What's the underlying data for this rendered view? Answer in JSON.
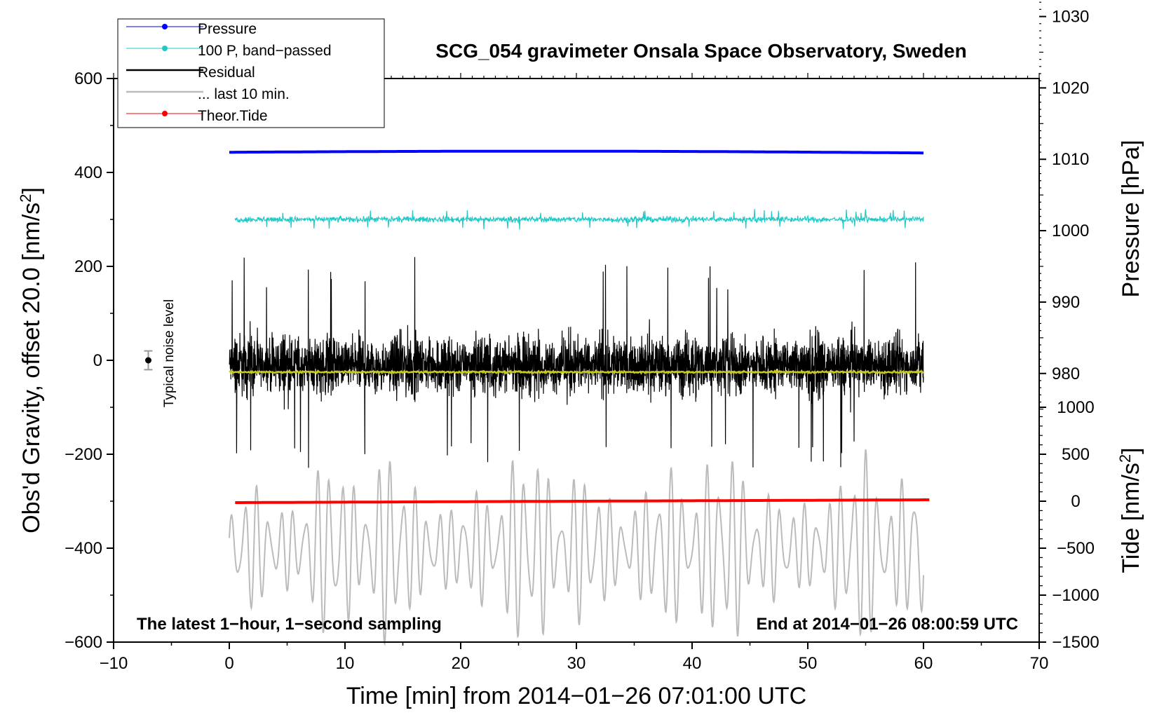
{
  "chart_data": {
    "type": "line",
    "title": "SCG_054 gravimeter Onsala Space Observatory, Sweden",
    "xlabel": "Time [min] from 2014−01−26 07:01:00 UTC",
    "ylabel_left": "Obs'd Gravity, offset 20.0 [nm/s",
    "ylabel_left_sup": "2",
    "ylabel_left_close": "]",
    "ylabel_right_pressure": "Pressure [hPa]",
    "ylabel_right_tide": "Tide [nm/s",
    "ylabel_right_tide_sup": "2",
    "ylabel_right_tide_close": "]",
    "xlim": [
      -10,
      70
    ],
    "ylim": [
      -600,
      600
    ],
    "x_ticks": [
      -10,
      0,
      10,
      20,
      30,
      40,
      50,
      60,
      70
    ],
    "x_tick_labels": [
      "−10",
      "0",
      "10",
      "20",
      "30",
      "40",
      "50",
      "60",
      "70"
    ],
    "y_ticks": [
      600,
      400,
      200,
      0,
      -200,
      -400,
      -600
    ],
    "y_tick_labels": [
      "600",
      "400",
      "200",
      "0",
      "−200",
      "−400",
      "−600"
    ],
    "pressure_axis": {
      "ticks": [
        1030,
        1020,
        1010,
        1000,
        990,
        980
      ],
      "tick_labels": [
        "1030",
        "1020",
        "1010",
        "1000",
        "990",
        "980"
      ],
      "gravity_equiv_of_1000hPa": 276,
      "gravity_per_hPa": 15.2
    },
    "tide_axis": {
      "ticks": [
        1000,
        500,
        0,
        -500,
        -1000,
        -1500
      ],
      "tick_labels": [
        "1000",
        "500",
        "0",
        "−500",
        "−1000",
        "−1500"
      ],
      "gravity_equiv_of_zero": -300,
      "gravity_per_unit": 0.2
    },
    "annotations": {
      "left": "The latest 1−hour, 1−second sampling",
      "right": "End at 2014−01−26 08:00:59 UTC",
      "noise": "Typical noise level"
    },
    "noise_marker": {
      "x": -7,
      "y": 0,
      "err": 20
    },
    "legend": [
      {
        "label": "Pressure",
        "color": "#0000ff",
        "marker": true
      },
      {
        "label": "100 P, band−passed",
        "color": "#20c8c8",
        "marker": true
      },
      {
        "label": "Residual",
        "color": "#000000",
        "marker": false
      },
      {
        "label": "... last 10 min.",
        "color": "#bbbbbb",
        "marker": false
      },
      {
        "label": "Theor.Tide",
        "color": "#ff0000",
        "marker": true
      }
    ],
    "series": [
      {
        "name": "Pressure",
        "color": "#0000ff",
        "x_range": [
          0,
          60
        ],
        "level": 443,
        "variation": 3,
        "kind": "flat"
      },
      {
        "name": "100 P, band−passed",
        "color": "#20c8c8",
        "x_range": [
          0.5,
          60
        ],
        "level": 300,
        "amplitude": 9,
        "kind": "noise"
      },
      {
        "name": "Residual",
        "color": "#000000",
        "x_range": [
          0,
          60
        ],
        "level": -10,
        "amplitude": 80,
        "peak": 230,
        "kind": "noise"
      },
      {
        "name": "Residual smoothed",
        "color": "#c8c820",
        "x_range": [
          0,
          60
        ],
        "level": -25,
        "amplitude": 3,
        "kind": "noise"
      },
      {
        "name": "... last 10 min.",
        "color": "#bbbbbb",
        "x_range": [
          0,
          60
        ],
        "level": -400,
        "amplitude": 200,
        "kind": "wave"
      },
      {
        "name": "Theor.Tide",
        "color": "#ff0000",
        "x_range": [
          0.5,
          60.5
        ],
        "start": -303,
        "end": -297,
        "kind": "ramp"
      }
    ]
  }
}
